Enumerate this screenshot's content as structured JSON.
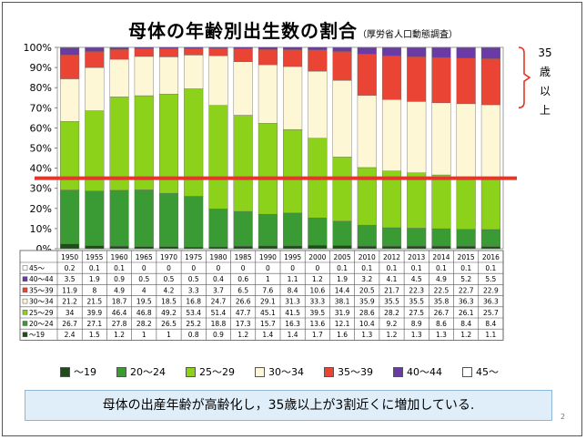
{
  "title": "母体の年齢別出生数の割合",
  "subtitle": "（厚労省人口動態調査）",
  "note": "母体の出産年齢が高齢化し，35歳以上が3割近くに増加している.",
  "page_number": "2",
  "callout": [
    "35",
    "歳",
    "以",
    "上"
  ],
  "colors": {
    "age_19": "#1f4d1a",
    "age_20_24": "#3a9a34",
    "age_25_29": "#8cd11a",
    "age_30_34": "#fdf7d6",
    "age_35_39": "#e94434",
    "age_40_44": "#6a3aa5",
    "age_45": "#ffffff",
    "line": "#e2372b"
  },
  "chart_data": {
    "type": "bar",
    "stacked": true,
    "ylim": [
      0,
      100
    ],
    "y_ticks": [
      "0%",
      "10%",
      "20%",
      "30%",
      "40%",
      "50%",
      "60%",
      "70%",
      "80%",
      "90%",
      "100%"
    ],
    "reference_line": 35,
    "categories": [
      "1950",
      "1955",
      "1960",
      "1965",
      "1970",
      "1975",
      "1980",
      "1985",
      "1990",
      "1995",
      "2000",
      "2005",
      "2010",
      "2012",
      "2013",
      "2014",
      "2015",
      "2016"
    ],
    "series": [
      {
        "name": "～19",
        "key": "age_19",
        "values": [
          2.4,
          1.5,
          1.2,
          1,
          1,
          0.8,
          0.9,
          1.2,
          1.4,
          1.4,
          1.7,
          1.6,
          1.3,
          1.2,
          1.3,
          1.3,
          1.2,
          1.1
        ]
      },
      {
        "name": "20～24",
        "key": "age_20_24",
        "values": [
          26.7,
          27.1,
          27.8,
          28.2,
          26.5,
          25.2,
          18.8,
          17.3,
          15.7,
          16.3,
          13.6,
          12.1,
          10.4,
          9.2,
          8.9,
          8.6,
          8.4,
          8.4
        ]
      },
      {
        "name": "25～29",
        "key": "age_25_29",
        "values": [
          34,
          39.9,
          46.4,
          46.8,
          49.2,
          53.4,
          51.4,
          47.7,
          45.1,
          41.5,
          39.5,
          31.9,
          28.6,
          28.2,
          27.5,
          26.7,
          26.1,
          25.7
        ]
      },
      {
        "name": "30～34",
        "key": "age_30_34",
        "values": [
          21.2,
          21.5,
          18.7,
          19.5,
          18.5,
          16.8,
          24.7,
          26.6,
          29.1,
          31.3,
          33.3,
          38.1,
          35.9,
          35.5,
          35.5,
          35.8,
          36.3,
          36.3
        ]
      },
      {
        "name": "35～39",
        "key": "age_35_39",
        "values": [
          11.9,
          8,
          4.9,
          4,
          4.2,
          3.3,
          3.7,
          6.5,
          7.6,
          8.4,
          10.6,
          14.4,
          20.5,
          21.7,
          22.3,
          22.5,
          22.7,
          22.9
        ]
      },
      {
        "name": "40～44",
        "key": "age_40_44",
        "values": [
          3.5,
          1.9,
          0.9,
          0.5,
          0.5,
          0.5,
          0.4,
          0.6,
          1,
          1.1,
          1.2,
          1.9,
          3.2,
          4.1,
          4.5,
          4.9,
          5.2,
          5.5
        ]
      },
      {
        "name": "45～",
        "key": "age_45",
        "values": [
          0.2,
          0.1,
          0.1,
          0,
          0,
          0,
          0,
          0,
          0,
          0,
          0,
          0.1,
          0.1,
          0.1,
          0.1,
          0.1,
          0.1,
          0.1
        ]
      }
    ]
  }
}
